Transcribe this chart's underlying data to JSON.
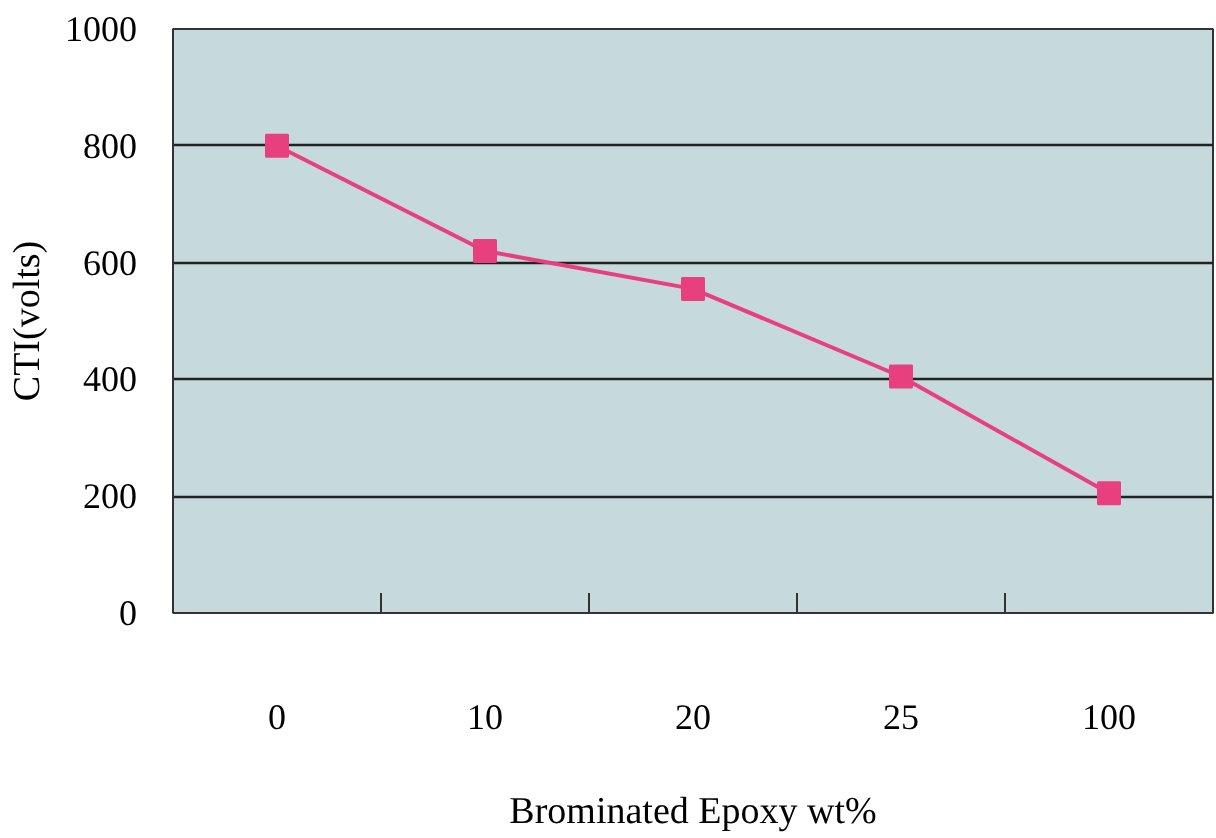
{
  "chart_data": {
    "type": "line",
    "xlabel": "Brominated Epoxy wt%",
    "ylabel": "CTI(volts)",
    "categories": [
      "0",
      "10",
      "20",
      "25",
      "100"
    ],
    "series": [
      {
        "color": "#e8407f",
        "values": [
          800,
          620,
          555,
          405,
          205
        ]
      }
    ],
    "ylim": [
      0,
      1000
    ],
    "yticks": [
      0,
      200,
      400,
      600,
      800,
      1000
    ],
    "grid": "y",
    "marker": "square",
    "line_style": "solid"
  }
}
